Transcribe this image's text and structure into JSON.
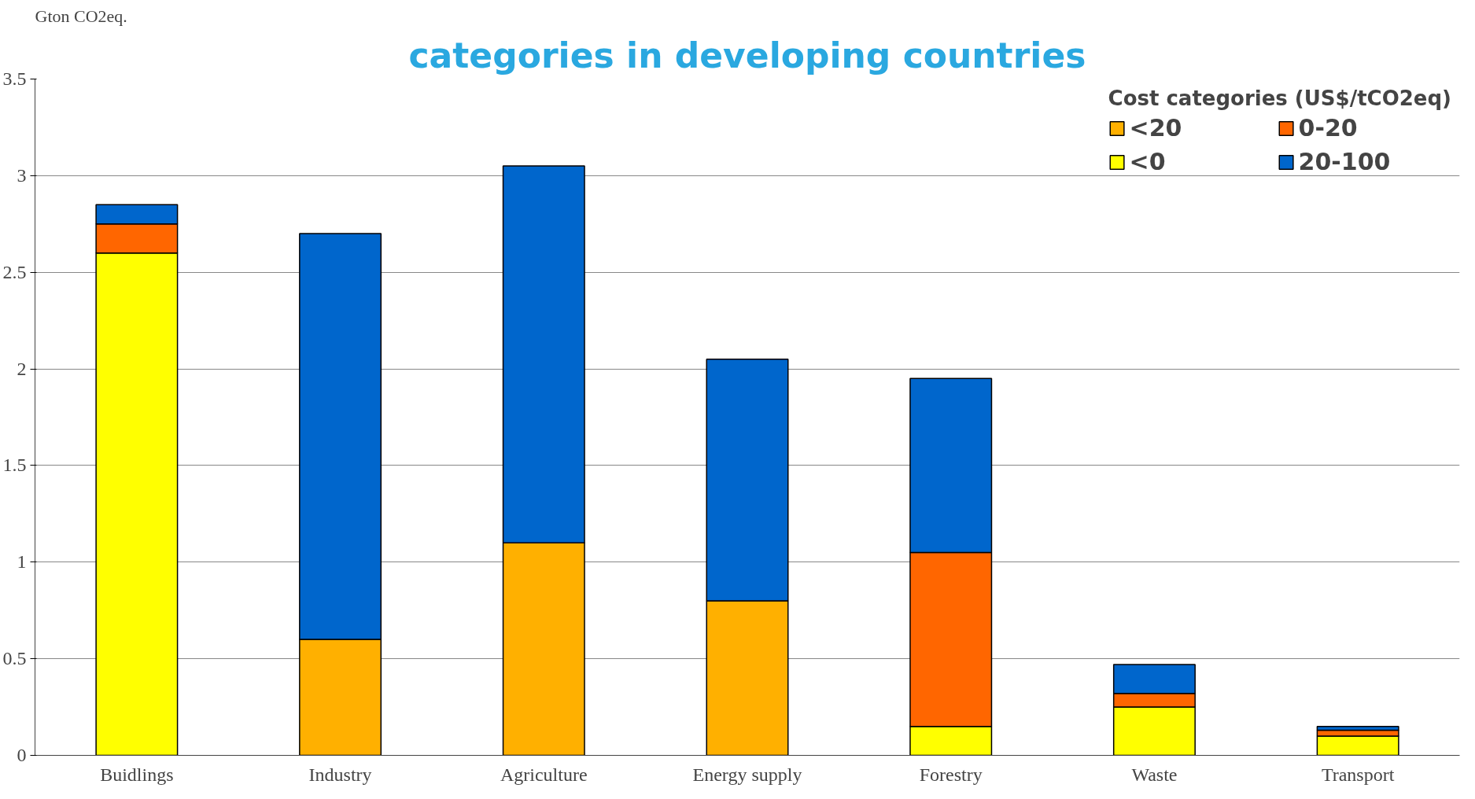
{
  "chart_data": {
    "type": "bar",
    "stacked": true,
    "title": "categories in developing countries",
    "ylabel": "Gton CO2eq.",
    "legend_title": "Cost categories (US$/tCO2eq)",
    "categories": [
      "Buidlings",
      "Industry",
      "Agriculture",
      "Energy supply",
      "Forestry",
      "Waste",
      "Transport"
    ],
    "series": [
      {
        "name": "<20",
        "color": "#ffb000",
        "values": [
          null,
          0.6,
          1.1,
          0.8,
          null,
          null,
          null
        ]
      },
      {
        "name": "<0",
        "color": "#ffff00",
        "values": [
          2.6,
          null,
          null,
          null,
          0.15,
          0.25,
          0.1
        ]
      },
      {
        "name": "0-20",
        "color": "#ff6600",
        "values": [
          0.15,
          null,
          null,
          null,
          0.9,
          0.07,
          0.03
        ]
      },
      {
        "name": "20-100",
        "color": "#0066cc",
        "values": [
          0.1,
          2.1,
          1.95,
          1.25,
          0.9,
          0.15,
          0.02
        ]
      }
    ],
    "ylim": [
      0,
      3.5
    ],
    "yticks": [
      0,
      0.5,
      1,
      1.5,
      2,
      2.5,
      3,
      3.5
    ],
    "grid": "y",
    "legend": "top right"
  }
}
